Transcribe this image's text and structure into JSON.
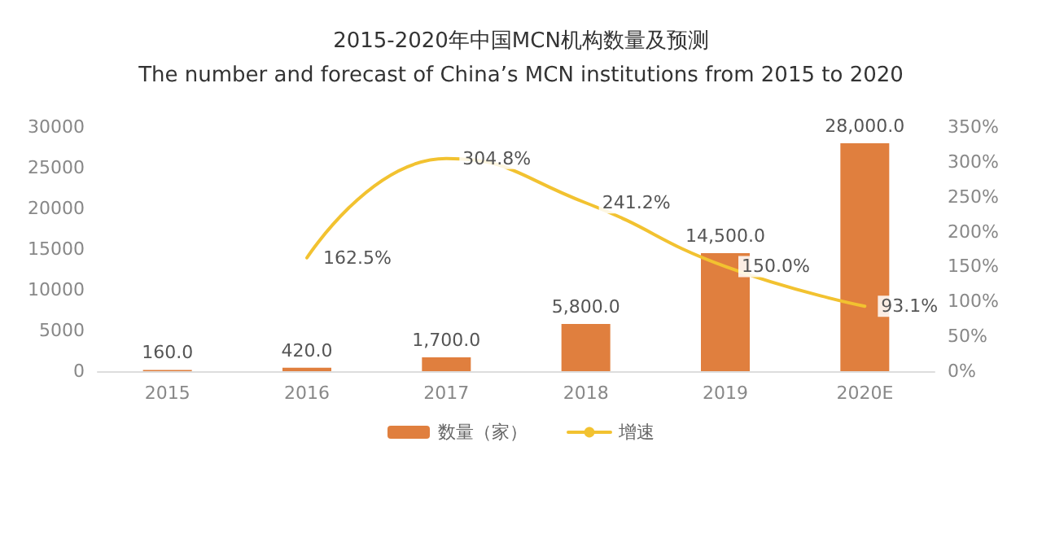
{
  "chart_data": {
    "type": "bar",
    "title": "2015-2020年中国MCN机构数量及预测",
    "subtitle": "The number and forecast of China’s MCN institutions from 2015 to 2020",
    "categories": [
      "2015",
      "2016",
      "2017",
      "2018",
      "2019",
      "2020E"
    ],
    "series": [
      {
        "name": "数量（家）",
        "color": "#e07f3e",
        "values": [
          160,
          420,
          1700,
          5800,
          14500,
          28000
        ],
        "value_labels": [
          "160.0",
          "420.0",
          "1,700.0",
          "5,800.0",
          "14,500.0",
          "28,000.0"
        ]
      },
      {
        "name": "增速",
        "type": "line",
        "axis": "y2",
        "color": "#f2c230",
        "values": [
          null,
          162.5,
          304.8,
          241.2,
          150.0,
          93.1
        ],
        "value_labels": [
          null,
          "162.5%",
          "304.8%",
          "241.2%",
          "150.0%",
          "93.1%"
        ]
      }
    ],
    "ylim": [
      0,
      30000
    ],
    "yticks": [
      0,
      5000,
      10000,
      15000,
      20000,
      25000,
      30000
    ],
    "y2lim": [
      0,
      350
    ],
    "y2ticks": [
      {
        "value": 0,
        "label": "0%"
      },
      {
        "value": 50,
        "label": "50%"
      },
      {
        "value": 100,
        "label": "100%"
      },
      {
        "value": 150,
        "label": "150%"
      },
      {
        "value": 200,
        "label": "200%"
      },
      {
        "value": 250,
        "label": "250%"
      },
      {
        "value": 300,
        "label": "300%"
      },
      {
        "value": 350,
        "label": "350%"
      }
    ],
    "grid": false,
    "legend": "bottom",
    "marker": "none"
  }
}
